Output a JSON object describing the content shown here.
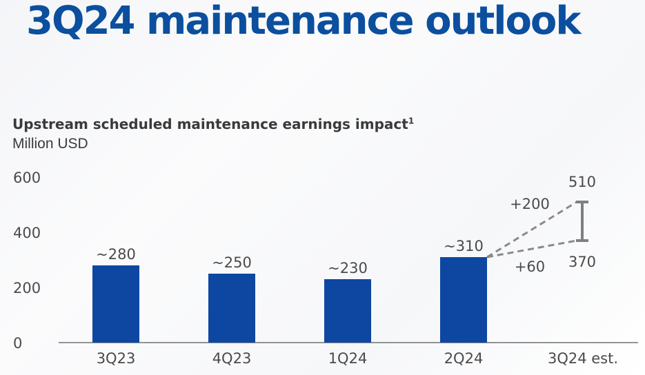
{
  "page": {
    "title": "3Q24 maintenance outlook"
  },
  "chart_data": {
    "type": "bar",
    "title": "Upstream scheduled maintenance earnings impact",
    "title_footnote": "1",
    "unit_label": "Million USD",
    "categories": [
      "3Q23",
      "4Q23",
      "1Q24",
      "2Q24",
      "3Q24 est."
    ],
    "values": [
      280,
      250,
      230,
      310,
      null
    ],
    "value_labels": [
      "~280",
      "~250",
      "~230",
      "~310",
      ""
    ],
    "y_ticks": [
      0,
      200,
      400,
      600
    ],
    "y_tick_labels": [
      "0",
      "200",
      "400",
      "600"
    ],
    "ylim": [
      0,
      600
    ],
    "estimate": {
      "category": "3Q24 est.",
      "low": 370,
      "high": 510,
      "low_label": "370",
      "high_label": "510",
      "low_delta_label": "+60",
      "high_delta_label": "+200"
    },
    "grid": false,
    "legend": "none"
  },
  "colors": {
    "title": "#0b4f9e",
    "bar": "#0d47a1",
    "text": "#3a3a3a",
    "dashed": "#8a8a8a",
    "range": "#7f7f7f"
  }
}
